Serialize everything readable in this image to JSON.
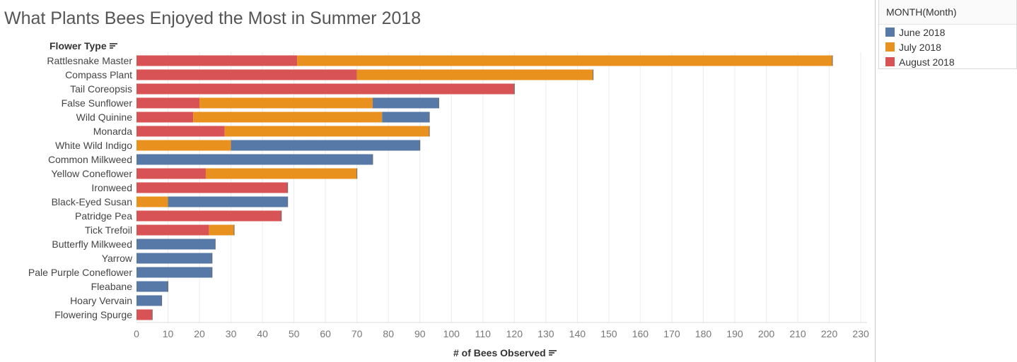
{
  "title": "What Plants Bees Enjoyed the Most in Summer 2018",
  "row_header": "Flower Type",
  "x_axis_title": "# of Bees Observed",
  "legend": {
    "title": "MONTH(Month)",
    "items": [
      {
        "label": "June 2018",
        "color": "#5779a8"
      },
      {
        "label": "July 2018",
        "color": "#e8911f"
      },
      {
        "label": "August 2018",
        "color": "#d75356"
      }
    ]
  },
  "chart_data": {
    "type": "bar",
    "orientation": "horizontal",
    "stacked": true,
    "xlabel": "# of Bees Observed",
    "ylabel": "Flower Type",
    "xlim": [
      0,
      232
    ],
    "x_ticks": [
      0,
      10,
      20,
      30,
      40,
      50,
      60,
      70,
      80,
      90,
      100,
      110,
      120,
      130,
      140,
      150,
      160,
      170,
      180,
      190,
      200,
      210,
      220,
      230
    ],
    "grid": true,
    "legend_position": "top-right",
    "stack_order": [
      "August 2018",
      "July 2018",
      "June 2018"
    ],
    "categories": [
      "Rattlesnake Master",
      "Compass Plant",
      "Tail Coreopsis",
      "False Sunflower",
      "Wild Quinine",
      "Monarda",
      "White Wild Indigo",
      "Common Milkweed",
      "Yellow Coneflower",
      "Ironweed",
      "Black-Eyed Susan",
      "Patridge Pea",
      "Tick Trefoil",
      "Butterfly Milkweed",
      "Yarrow",
      "Pale Purple Coneflower",
      "Fleabane",
      "Hoary Vervain",
      "Flowering Spurge"
    ],
    "series": [
      {
        "name": "June 2018",
        "color": "#5779a8",
        "values": [
          0,
          0,
          0,
          21,
          15,
          0,
          60,
          75,
          0,
          0,
          38,
          0,
          0,
          25,
          24,
          24,
          10,
          8,
          0
        ]
      },
      {
        "name": "July 2018",
        "color": "#e8911f",
        "values": [
          170,
          75,
          0,
          55,
          60,
          65,
          30,
          0,
          48,
          0,
          10,
          0,
          8,
          0,
          0,
          0,
          0,
          0,
          0
        ]
      },
      {
        "name": "August 2018",
        "color": "#d75356",
        "values": [
          51,
          70,
          120,
          20,
          18,
          28,
          0,
          0,
          22,
          48,
          0,
          46,
          23,
          0,
          0,
          0,
          0,
          0,
          5
        ]
      }
    ]
  }
}
